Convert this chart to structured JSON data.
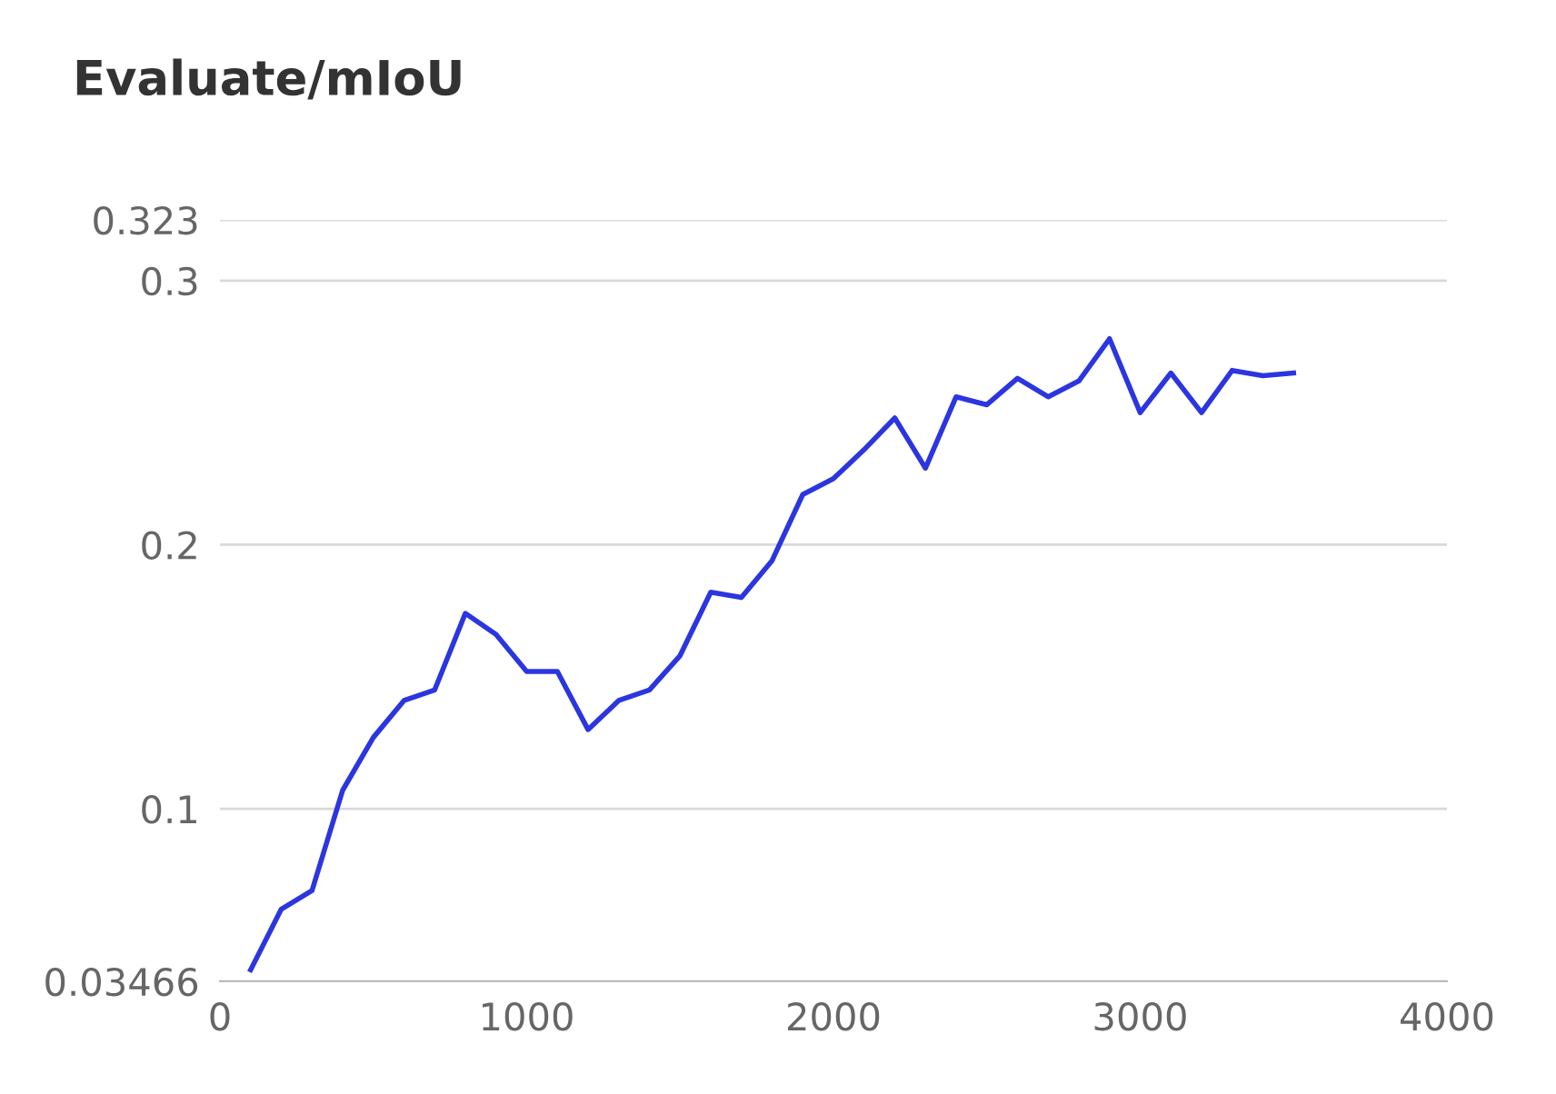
{
  "chart_data": {
    "type": "line",
    "title": "Evaluate/mIoU",
    "x": [
      100,
      200,
      300,
      400,
      500,
      600,
      700,
      800,
      900,
      1000,
      1100,
      1200,
      1300,
      1400,
      1500,
      1600,
      1700,
      1800,
      1900,
      2000,
      2100,
      2200,
      2300,
      2400,
      2500,
      2600,
      2700,
      2800,
      2900,
      3000,
      3100,
      3200,
      3300,
      3400,
      3500
    ],
    "series": [
      {
        "color": "#2b35e0",
        "values": [
          0.039,
          0.062,
          0.069,
          0.107,
          0.127,
          0.141,
          0.145,
          0.174,
          0.166,
          0.152,
          0.152,
          0.13,
          0.141,
          0.145,
          0.158,
          0.182,
          0.18,
          0.194,
          0.219,
          0.225,
          0.236,
          0.248,
          0.229,
          0.256,
          0.253,
          0.263,
          0.256,
          0.262,
          0.278,
          0.25,
          0.265,
          0.25,
          0.266,
          0.264,
          0.265
        ]
      }
    ],
    "xlim": [
      0,
      4000
    ],
    "xticks": [
      0,
      1000,
      2000,
      3000,
      4000
    ],
    "ylim": [
      0.03466,
      0.323
    ],
    "yticks": [
      0.03466,
      0.1,
      0.2,
      0.3,
      0.323
    ],
    "grid": "y",
    "marker": "none",
    "line_style": "solid",
    "legend": false
  }
}
